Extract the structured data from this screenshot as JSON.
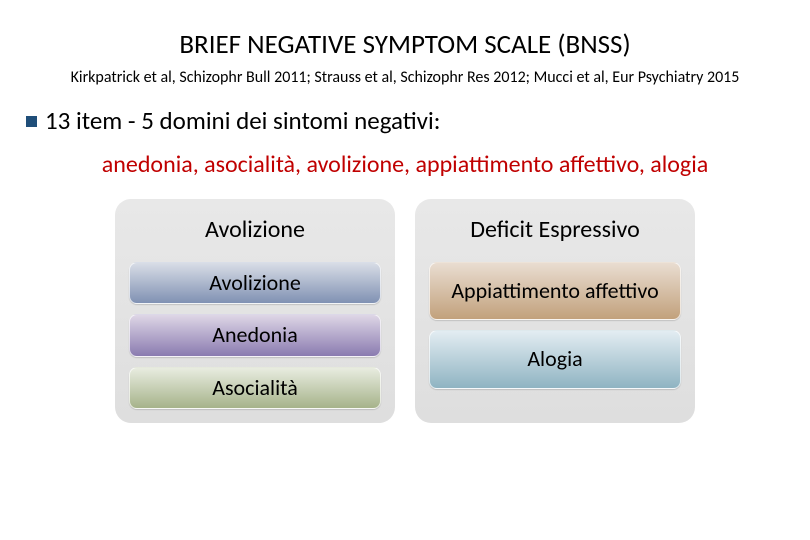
{
  "title": "BRIEF NEGATIVE SYMPTOM SCALE (BNSS)",
  "references": "Kirkpatrick et al, Schizophr Bull 2011; Strauss et al, Schizophr Res 2012; Mucci et al, Eur Psychiatry 2015",
  "bullet": "13 item - 5 domini dei sintomi negativi:",
  "domains_line": "anedonia, asocialità, avolizione, appiattimento affettivo, alogia",
  "domains_color": "#c00000",
  "columns": {
    "left": {
      "header": "Avolizione",
      "items": [
        {
          "label": "Avolizione",
          "gradient_top": "#d8dde6",
          "gradient_bottom": "#8091b3"
        },
        {
          "label": "Anedonia",
          "gradient_top": "#ded6e6",
          "gradient_bottom": "#8a7bb0"
        },
        {
          "label": "Asocialità",
          "gradient_top": "#e8ece0",
          "gradient_bottom": "#a6b38a"
        }
      ]
    },
    "right": {
      "header": "Deficit Espressivo",
      "items": [
        {
          "label": "Appiattimento affettivo",
          "gradient_top": "#e9ddd1",
          "gradient_bottom": "#c2a17c",
          "tall": true
        },
        {
          "label": "Alogia",
          "gradient_top": "#e3edf2",
          "gradient_bottom": "#8fb4c2",
          "tall": true
        }
      ]
    }
  },
  "colors": {
    "panel_bg": "#e3e3e3",
    "bullet_square": "#1f4e79"
  }
}
